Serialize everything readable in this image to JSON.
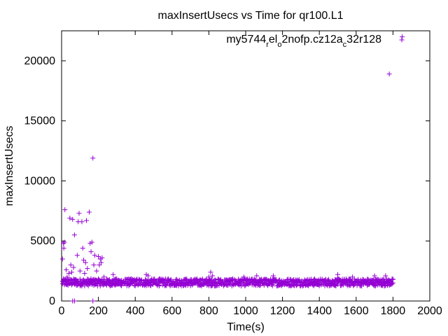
{
  "chart_data": {
    "type": "scatter",
    "title": "maxInsertUsecs vs Time for qr100.L1",
    "xlabel": "Time(s)",
    "ylabel": "maxInsertUsecs",
    "xlim": [
      0,
      2000
    ],
    "ylim": [
      0,
      22500
    ],
    "x_ticks": [
      0,
      200,
      400,
      600,
      800,
      1000,
      1200,
      1400,
      1600,
      1800,
      2000
    ],
    "y_ticks": [
      0,
      5000,
      10000,
      15000,
      20000
    ],
    "grid": false,
    "legend_position": "top-right",
    "marker": "plus",
    "color": "#9400d3",
    "series": [
      {
        "name_parts": [
          {
            "text": "my5744",
            "sub": false
          },
          {
            "text": "r",
            "sub": true
          },
          {
            "text": "el",
            "sub": false
          },
          {
            "text": "o",
            "sub": true
          },
          {
            "text": "2nofp.cz12a",
            "sub": false
          },
          {
            "text": "c",
            "sub": true
          },
          {
            "text": "32r128",
            "sub": false
          }
        ],
        "points": [
          [
            5,
            3500
          ],
          [
            10,
            4800
          ],
          [
            12,
            4400
          ],
          [
            15,
            4900
          ],
          [
            18,
            7600
          ],
          [
            25,
            2600
          ],
          [
            30,
            2000
          ],
          [
            40,
            2300
          ],
          [
            45,
            6900
          ],
          [
            50,
            3000
          ],
          [
            55,
            2400
          ],
          [
            60,
            6800
          ],
          [
            60,
            0
          ],
          [
            65,
            2800
          ],
          [
            70,
            5500
          ],
          [
            70,
            0
          ],
          [
            75,
            1800
          ],
          [
            85,
            3800
          ],
          [
            90,
            6600
          ],
          [
            95,
            7300
          ],
          [
            100,
            2500
          ],
          [
            110,
            6600
          ],
          [
            115,
            4400
          ],
          [
            120,
            3400
          ],
          [
            125,
            2300
          ],
          [
            130,
            3200
          ],
          [
            135,
            6700
          ],
          [
            140,
            2700
          ],
          [
            150,
            7400
          ],
          [
            155,
            4800
          ],
          [
            160,
            4100
          ],
          [
            165,
            4900
          ],
          [
            170,
            11900
          ],
          [
            170,
            0
          ],
          [
            175,
            3000
          ],
          [
            180,
            3800
          ],
          [
            190,
            2500
          ],
          [
            200,
            3700
          ],
          [
            205,
            3000
          ],
          [
            210,
            3500
          ],
          [
            215,
            3200
          ],
          [
            220,
            3600
          ],
          [
            230,
            2000
          ],
          [
            280,
            2200
          ],
          [
            460,
            2200
          ],
          [
            470,
            2100
          ],
          [
            800,
            2000
          ],
          [
            810,
            2400
          ],
          [
            820,
            2100
          ],
          [
            990,
            2000
          ],
          [
            1060,
            2100
          ],
          [
            1150,
            2100
          ],
          [
            1500,
            2200
          ],
          [
            1580,
            2000
          ],
          [
            1700,
            2100
          ],
          [
            1760,
            2100
          ],
          [
            1780,
            18900
          ],
          [
            1850,
            22000
          ]
        ],
        "band": {
          "x_start": 5,
          "x_end": 1800,
          "x_step": 5,
          "y_low": 1250,
          "y_high": 1850
        }
      }
    ]
  }
}
